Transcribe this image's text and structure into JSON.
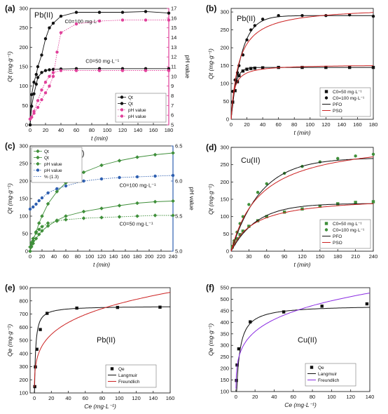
{
  "figure": {
    "colors": {
      "black": "#111111",
      "pink": "#e0409a",
      "red": "#cc2222",
      "green": "#3f8f3a",
      "blue": "#2e5fb0",
      "purple": "#8a2be2",
      "gray": "#555555"
    }
  },
  "chart_data": [
    {
      "panel": "(a)",
      "type": "line",
      "metal": "Pb(II)",
      "xlabel": "t (min)",
      "ylabel": "Qt (mg·g⁻¹)",
      "y2label": "pH value",
      "xlim": [
        0,
        180
      ],
      "ylim": [
        0,
        300
      ],
      "y2lim": [
        5,
        17
      ],
      "xticks": [
        0,
        20,
        40,
        60,
        80,
        100,
        120,
        140,
        160,
        180
      ],
      "yticks": [
        0,
        50,
        100,
        150,
        200,
        250,
        300
      ],
      "y2ticks": [
        5,
        6,
        7,
        8,
        9,
        10,
        11,
        12,
        13,
        14,
        15,
        16,
        17
      ],
      "annotations": [
        {
          "text": "C0=100 mg·L⁻¹",
          "x": 45,
          "y": 262
        },
        {
          "text": "C0=50 mg·L⁻¹",
          "x": 72,
          "y": 160
        }
      ],
      "legend": {
        "entries": [
          "Qt",
          "Qt",
          "pH value",
          "pH value"
        ],
        "placement": "lower-right"
      },
      "series": [
        {
          "name": "Qt",
          "axis": "y",
          "color": "black",
          "marker": "circle",
          "line": "solid",
          "x": [
            0,
            2,
            5,
            8,
            10,
            15,
            20,
            25,
            30,
            40,
            60,
            90,
            120,
            150,
            180
          ],
          "y": [
            0,
            48,
            80,
            105,
            122,
            135,
            140,
            142,
            143,
            144,
            145,
            145,
            145,
            145,
            145
          ]
        },
        {
          "name": "Qt",
          "axis": "y",
          "color": "black",
          "marker": "circle",
          "line": "solid",
          "x": [
            0,
            2,
            5,
            8,
            10,
            15,
            20,
            25,
            30,
            40,
            60,
            90,
            120,
            150,
            180
          ],
          "y": [
            0,
            78,
            110,
            130,
            150,
            180,
            222,
            250,
            262,
            280,
            290,
            290,
            290,
            292,
            288
          ]
        },
        {
          "name": "pH value",
          "axis": "y2",
          "color": "pink",
          "marker": "circle",
          "line": "dotted",
          "x": [
            0,
            2,
            5,
            10,
            15,
            20,
            25,
            30,
            40,
            60,
            90,
            120,
            150,
            180
          ],
          "y": [
            5.6,
            5.8,
            6.4,
            7.5,
            8.6,
            9.4,
            10.0,
            10.4,
            10.6,
            10.6,
            10.6,
            10.6,
            10.6,
            10.6
          ]
        },
        {
          "name": "pH value",
          "axis": "y2",
          "color": "pink",
          "marker": "circle",
          "line": "dotted",
          "x": [
            0,
            2,
            5,
            10,
            15,
            20,
            25,
            30,
            35,
            40,
            60,
            90,
            120,
            150,
            180
          ],
          "y": [
            5.6,
            5.8,
            6.2,
            6.8,
            7.6,
            8.3,
            9.0,
            10.0,
            12.5,
            14.5,
            15.4,
            15.7,
            15.8,
            15.8,
            15.8
          ]
        }
      ]
    },
    {
      "panel": "(b)",
      "type": "scatter",
      "metal": "Pb(II)",
      "xlabel": "t (min)",
      "ylabel": "Qt (mg·g⁻¹)",
      "xlim": [
        0,
        180
      ],
      "ylim": [
        0,
        310
      ],
      "xticks": [
        0,
        20,
        40,
        60,
        80,
        100,
        120,
        140,
        160,
        180
      ],
      "yticks": [
        0,
        50,
        100,
        150,
        200,
        250,
        300
      ],
      "legend": {
        "entries": [
          "C0=50 mg·L⁻¹",
          "C0=100 mg·L⁻¹",
          "PFO",
          "PSO"
        ],
        "placement": "lower-right"
      },
      "series": [
        {
          "name": "C0=50 mg·L⁻¹",
          "color": "black",
          "marker": "square",
          "x": [
            2,
            5,
            8,
            10,
            15,
            20,
            25,
            30,
            40,
            60,
            90,
            120,
            150,
            180
          ],
          "y": [
            48,
            80,
            105,
            122,
            135,
            140,
            142,
            143,
            144,
            145,
            145,
            145,
            145,
            145
          ]
        },
        {
          "name": "C0=100 mg·L⁻¹",
          "color": "black",
          "marker": "circle",
          "x": [
            2,
            5,
            8,
            10,
            15,
            20,
            25,
            30,
            40,
            60,
            90,
            120,
            150,
            180
          ],
          "y": [
            78,
            110,
            130,
            150,
            180,
            222,
            250,
            262,
            280,
            290,
            290,
            290,
            292,
            288
          ]
        },
        {
          "name": "PFO",
          "color": "black",
          "line": "solid",
          "model": "pfo",
          "params": [
            {
              "qe": 145,
              "k": 0.19
            },
            {
              "qe": 290,
              "k": 0.075
            }
          ]
        },
        {
          "name": "PSO",
          "color": "red",
          "line": "solid",
          "model": "pso",
          "params": [
            {
              "qe": 153,
              "k": 0.0018
            },
            {
              "qe": 315,
              "k": 0.00032
            }
          ]
        }
      ]
    },
    {
      "panel": "(c)",
      "type": "line",
      "metal": "Cu(II)",
      "xlabel": "t (min)",
      "ylabel": "Qt (mg·g⁻¹)",
      "y2label": "pH value",
      "xlim": [
        0,
        240
      ],
      "ylim": [
        0,
        300
      ],
      "y2lim": [
        5.0,
        6.5
      ],
      "xticks": [
        0,
        20,
        40,
        60,
        80,
        100,
        120,
        140,
        160,
        180,
        200,
        220,
        240
      ],
      "yticks": [
        0,
        50,
        100,
        150,
        200,
        250,
        300
      ],
      "y2ticks": [
        5.0,
        5.5,
        6.0,
        6.5
      ],
      "annotations": [
        {
          "text": "C0=100 mg·L⁻¹",
          "x": 150,
          "y": 183
        },
        {
          "text": "C0=50 mg·L⁻¹",
          "x": 150,
          "y": 73
        }
      ],
      "legend": {
        "entries": [
          "Qt",
          "Qt",
          "pH value",
          "pH value",
          "% (1.3)"
        ],
        "placement": "top-left"
      },
      "series": [
        {
          "name": "Qt",
          "axis": "y",
          "color": "green",
          "marker": "diamond",
          "line": "solid",
          "x": [
            0,
            2,
            5,
            10,
            15,
            20,
            30,
            45,
            60,
            90,
            120,
            150,
            180,
            210,
            240
          ],
          "y": [
            0,
            12,
            22,
            36,
            48,
            58,
            72,
            88,
            100,
            113,
            122,
            130,
            137,
            141,
            143
          ]
        },
        {
          "name": "Qt",
          "axis": "y",
          "color": "green",
          "marker": "diamond",
          "line": "solid",
          "x": [
            0,
            2,
            5,
            10,
            15,
            20,
            30,
            45,
            60,
            90,
            120,
            150,
            180,
            210,
            240
          ],
          "y": [
            0,
            14,
            30,
            55,
            80,
            100,
            135,
            170,
            195,
            225,
            245,
            258,
            268,
            275,
            280
          ]
        },
        {
          "name": "pH value",
          "axis": "y2",
          "color": "green",
          "marker": "diamond",
          "line": "dotted",
          "x": [
            0,
            2,
            5,
            10,
            15,
            20,
            30,
            45,
            60,
            90,
            120,
            150,
            180,
            210,
            240
          ],
          "y": [
            5.06,
            5.12,
            5.18,
            5.26,
            5.31,
            5.35,
            5.4,
            5.43,
            5.45,
            5.47,
            5.48,
            5.49,
            5.5,
            5.51,
            5.51
          ]
        },
        {
          "name": "pH value",
          "axis": "y2",
          "color": "blue",
          "marker": "circle",
          "line": "dotted",
          "x": [
            0,
            5,
            10,
            15,
            20,
            30,
            45,
            60,
            90,
            120,
            150,
            180,
            210,
            240
          ],
          "y": [
            5.6,
            5.63,
            5.67,
            5.72,
            5.76,
            5.83,
            5.89,
            5.93,
            6.0,
            6.03,
            6.05,
            6.06,
            6.07,
            6.08
          ]
        }
      ]
    },
    {
      "panel": "(d)",
      "type": "scatter",
      "metal": "Cu(II)",
      "xlabel": "t (min)",
      "ylabel": "Qt (mg·g⁻¹)",
      "xlim": [
        0,
        240
      ],
      "ylim": [
        0,
        300
      ],
      "xticks": [
        0,
        30,
        60,
        90,
        120,
        150,
        180,
        210,
        240
      ],
      "yticks": [
        0,
        50,
        100,
        150,
        200,
        250,
        300
      ],
      "legend": {
        "entries": [
          "C0=50 mg·L⁻¹",
          "C0=100 mg·L⁻¹",
          "PFO",
          "PSO"
        ],
        "placement": "lower-right"
      },
      "series": [
        {
          "name": "C0=50 mg·L⁻¹",
          "color": "green",
          "marker": "square",
          "x": [
            2,
            5,
            10,
            15,
            20,
            30,
            45,
            60,
            90,
            120,
            150,
            180,
            210,
            240
          ],
          "y": [
            12,
            22,
            36,
            48,
            58,
            72,
            88,
            100,
            113,
            122,
            130,
            137,
            141,
            143
          ]
        },
        {
          "name": "C0=100 mg·L⁻¹",
          "color": "green",
          "marker": "circle",
          "x": [
            2,
            5,
            10,
            15,
            20,
            30,
            45,
            60,
            90,
            120,
            150,
            180,
            210,
            240
          ],
          "y": [
            14,
            30,
            55,
            80,
            100,
            135,
            170,
            195,
            225,
            245,
            258,
            268,
            275,
            280
          ]
        },
        {
          "name": "PFO",
          "color": "black",
          "line": "solid",
          "model": "pfo",
          "params": [
            {
              "qe": 138,
              "k": 0.023
            },
            {
              "qe": 270,
              "k": 0.02
            }
          ]
        },
        {
          "name": "PSO",
          "color": "red",
          "line": "solid",
          "model": "pso",
          "params": [
            {
              "qe": 160,
              "k": 0.00016
            },
            {
              "qe": 330,
              "k": 6e-05
            }
          ]
        }
      ]
    },
    {
      "panel": "(e)",
      "type": "scatter",
      "metal": "Pb(II)",
      "xlabel": "Ce (mg·L⁻¹)",
      "ylabel": "Qe (mg·g⁻¹)",
      "xlim": [
        -5,
        160
      ],
      "ylim": [
        100,
        900
      ],
      "xticks": [
        0,
        20,
        40,
        60,
        80,
        100,
        120,
        140,
        160
      ],
      "yticks": [
        100,
        200,
        300,
        400,
        500,
        600,
        700,
        800,
        900
      ],
      "legend": {
        "entries": [
          "Qe",
          "Langmuir",
          "Freundlich"
        ],
        "placement": "lower-right"
      },
      "series": [
        {
          "name": "Qe",
          "color": "black",
          "marker": "square",
          "x": [
            0.5,
            1.2,
            3,
            7,
            15,
            50,
            98,
            148
          ],
          "y": [
            148,
            298,
            432,
            582,
            705,
            745,
            750,
            752
          ]
        },
        {
          "name": "Langmuir",
          "color": "black",
          "line": "solid",
          "model": "langmuir",
          "params": {
            "qm": 760,
            "KL": 0.85
          }
        },
        {
          "name": "Freundlich",
          "color": "red",
          "line": "solid",
          "model": "freundlich",
          "params": {
            "KF": 280,
            "n": 4.5
          }
        }
      ]
    },
    {
      "panel": "(f)",
      "type": "scatter",
      "metal": "Cu(II)",
      "xlabel": "Ce (mg·L⁻¹)",
      "ylabel": "Qe (mg·g⁻¹)",
      "xlim": [
        -5,
        140
      ],
      "ylim": [
        100,
        550
      ],
      "xticks": [
        0,
        20,
        40,
        60,
        80,
        100,
        120,
        140
      ],
      "yticks": [
        100,
        150,
        200,
        250,
        300,
        350,
        400,
        450,
        500,
        550
      ],
      "legend": {
        "entries": [
          "Qe",
          "Langmuir",
          "Freundlich"
        ],
        "placement": "lower-right"
      },
      "series": [
        {
          "name": "Qe",
          "color": "black",
          "marker": "square",
          "x": [
            0.5,
            1.2,
            3,
            15,
            50,
            90,
            137
          ],
          "y": [
            148,
            215,
            285,
            402,
            445,
            470,
            480
          ]
        },
        {
          "name": "Langmuir",
          "color": "black",
          "line": "solid",
          "model": "langmuir",
          "params": {
            "qm": 475,
            "KL": 0.33
          }
        },
        {
          "name": "Freundlich",
          "color": "purple",
          "line": "solid",
          "model": "freundlich",
          "params": {
            "KF": 200,
            "n": 5.1
          }
        }
      ]
    }
  ]
}
